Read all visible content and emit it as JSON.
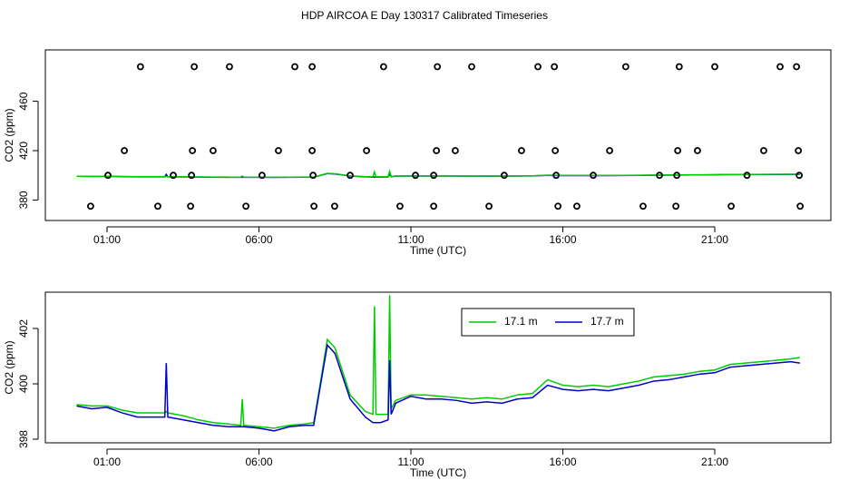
{
  "chart_data": [
    {
      "type": "line",
      "title": "HDP AIRCOA E  Day 130317  Calibrated Timeseries",
      "x_label": "Time (UTC)",
      "y_label": "CO2 (ppm)",
      "xlim": [
        -1.03,
        24.82
      ],
      "xticks": [
        {
          "value": 1,
          "label": "01:00"
        },
        {
          "value": 6,
          "label": "06:00"
        },
        {
          "value": 11,
          "label": "11:00"
        },
        {
          "value": 16,
          "label": "16:00"
        },
        {
          "value": 21,
          "label": "21:00"
        }
      ],
      "ylim": [
        363.4,
        501.6
      ],
      "yticks": [
        380,
        420,
        460
      ],
      "series": [
        {
          "color": "#0000cc",
          "x": [
            0,
            0.5,
            1,
            1.5,
            2,
            2.5,
            2.9,
            2.95,
            3,
            3.5,
            4,
            4.5,
            5,
            5.4,
            5.45,
            5.5,
            6,
            6.5,
            7,
            7.5,
            7.8,
            8,
            8.25,
            8.5,
            9,
            9.5,
            9.75,
            9.8,
            9.85,
            10,
            10.25,
            10.3,
            10.35,
            10.5,
            11,
            11.5,
            12,
            12.5,
            13,
            13.5,
            14,
            14.5,
            15,
            15.5,
            16,
            16.5,
            17,
            17.5,
            18,
            18.5,
            19,
            19.5,
            20,
            20.5,
            21,
            21.5,
            22,
            22.5,
            23,
            23.5,
            23.8
          ],
          "values": [
            399.2,
            399.1,
            399.15,
            398.95,
            398.8,
            398.8,
            398.8,
            400.75,
            398.8,
            398.7,
            398.6,
            398.5,
            398.45,
            398.45,
            398.45,
            398.45,
            398.4,
            398.3,
            398.45,
            398.5,
            398.5,
            399.8,
            401.4,
            401.1,
            399.45,
            398.8,
            398.6,
            398.6,
            398.6,
            398.6,
            398.7,
            400.85,
            398.9,
            399.3,
            399.55,
            399.45,
            399.45,
            399.4,
            399.3,
            399.35,
            399.3,
            399.45,
            399.5,
            399.95,
            399.8,
            399.75,
            399.8,
            399.75,
            399.85,
            399.95,
            400.1,
            400.15,
            400.25,
            400.35,
            400.4,
            400.6,
            400.65,
            400.7,
            400.75,
            400.8,
            400.75
          ]
        },
        {
          "color": "#00cc00",
          "x": [
            0,
            0.5,
            1,
            1.5,
            2,
            2.5,
            2.9,
            2.95,
            3,
            3.5,
            4,
            4.5,
            5,
            5.4,
            5.45,
            5.5,
            6,
            6.5,
            7,
            7.5,
            7.8,
            8,
            8.25,
            8.5,
            9,
            9.5,
            9.75,
            9.8,
            9.85,
            10,
            10.25,
            10.3,
            10.35,
            10.5,
            11,
            11.5,
            12,
            12.5,
            13,
            13.5,
            14,
            14.5,
            15,
            15.5,
            16,
            16.5,
            17,
            17.5,
            18,
            18.5,
            19,
            19.5,
            20,
            20.5,
            21,
            21.5,
            22,
            22.5,
            23,
            23.5,
            23.8
          ],
          "values": [
            399.25,
            399.2,
            399.2,
            399.05,
            398.95,
            398.95,
            398.95,
            399.0,
            398.95,
            398.85,
            398.7,
            398.6,
            398.55,
            398.5,
            399.45,
            398.5,
            398.45,
            398.4,
            398.5,
            398.55,
            398.6,
            399.9,
            401.6,
            401.3,
            399.6,
            399.0,
            398.9,
            402.8,
            398.9,
            398.9,
            398.9,
            403.2,
            399.1,
            399.4,
            399.6,
            399.6,
            399.55,
            399.5,
            399.45,
            399.5,
            399.45,
            399.6,
            399.65,
            400.15,
            399.95,
            399.9,
            399.95,
            399.9,
            400.0,
            400.1,
            400.25,
            400.3,
            400.35,
            400.45,
            400.5,
            400.7,
            400.75,
            400.8,
            400.85,
            400.9,
            400.95
          ]
        },
        {
          "color": "#000000",
          "marker": "circle",
          "x": [
            2.1,
            3.87,
            5.03,
            7.18,
            7.75,
            10.1,
            11.87,
            13.0,
            15.18,
            15.72,
            18.07,
            19.83,
            21.0,
            23.15,
            23.69,
            1.57,
            3.81,
            4.49,
            6.64,
            7.75,
            9.54,
            11.84,
            12.46,
            14.64,
            15.75,
            17.54,
            19.78,
            20.43,
            22.61,
            23.75,
            1.03,
            3.18,
            3.78,
            6.1,
            7.78,
            9.0,
            11.15,
            11.75,
            14.07,
            15.78,
            17.0,
            19.18,
            19.75,
            22.06,
            23.78,
            0.46,
            2.67,
            3.75,
            5.57,
            7.81,
            8.49,
            10.64,
            11.75,
            13.57,
            15.84,
            16.46,
            18.64,
            19.72,
            21.54,
            23.81
          ],
          "values": [
            488,
            488,
            488,
            488,
            488,
            488,
            488,
            488,
            488,
            488,
            488,
            488,
            488,
            488,
            488,
            420,
            420,
            420,
            420,
            420,
            420,
            420,
            420,
            420,
            420,
            420,
            420,
            420,
            420,
            420,
            400,
            400,
            400,
            400,
            400,
            400,
            400,
            400,
            400,
            400,
            400,
            400,
            400,
            400,
            400,
            375,
            375,
            375,
            375,
            375,
            375,
            375,
            375,
            375,
            375,
            375,
            375,
            375,
            375,
            375
          ]
        }
      ]
    },
    {
      "type": "line",
      "x_label": "Time (UTC)",
      "y_label": "CO2 (ppm)",
      "legend": "top",
      "xlim": [
        -1.03,
        24.82
      ],
      "xticks": [
        {
          "value": 1,
          "label": "01:00"
        },
        {
          "value": 6,
          "label": "06:00"
        },
        {
          "value": 11,
          "label": "11:00"
        },
        {
          "value": 16,
          "label": "16:00"
        },
        {
          "value": 21,
          "label": "21:00"
        }
      ],
      "ylim": [
        397.87,
        403.31
      ],
      "yticks": [
        398,
        400,
        402
      ],
      "series": [
        {
          "name": "17.1 m",
          "color": "#00cc00",
          "x": [
            0,
            0.5,
            1,
            1.5,
            2,
            2.5,
            2.9,
            2.95,
            3,
            3.5,
            4,
            4.5,
            5,
            5.4,
            5.45,
            5.5,
            6,
            6.5,
            7,
            7.5,
            7.8,
            8,
            8.25,
            8.5,
            9,
            9.5,
            9.75,
            9.8,
            9.85,
            10,
            10.25,
            10.3,
            10.35,
            10.5,
            11,
            11.5,
            12,
            12.5,
            13,
            13.5,
            14,
            14.5,
            15,
            15.5,
            16,
            16.5,
            17,
            17.5,
            18,
            18.5,
            19,
            19.5,
            20,
            20.5,
            21,
            21.5,
            22,
            22.5,
            23,
            23.5,
            23.8
          ],
          "values": [
            399.25,
            399.2,
            399.2,
            399.05,
            398.95,
            398.95,
            398.95,
            399.0,
            398.95,
            398.85,
            398.7,
            398.6,
            398.55,
            398.5,
            399.45,
            398.5,
            398.45,
            398.4,
            398.5,
            398.55,
            398.6,
            399.9,
            401.6,
            401.3,
            399.6,
            399.0,
            398.9,
            402.8,
            398.9,
            398.9,
            398.9,
            403.2,
            399.1,
            399.4,
            399.6,
            399.6,
            399.55,
            399.5,
            399.45,
            399.5,
            399.45,
            399.6,
            399.65,
            400.15,
            399.95,
            399.9,
            399.95,
            399.9,
            400.0,
            400.1,
            400.25,
            400.3,
            400.35,
            400.45,
            400.5,
            400.7,
            400.75,
            400.8,
            400.85,
            400.9,
            400.95
          ]
        },
        {
          "name": "17.7 m",
          "color": "#0000cc",
          "x": [
            0,
            0.5,
            1,
            1.5,
            2,
            2.5,
            2.9,
            2.95,
            3,
            3.5,
            4,
            4.5,
            5,
            5.4,
            5.45,
            5.5,
            6,
            6.5,
            7,
            7.5,
            7.8,
            8,
            8.25,
            8.5,
            9,
            9.5,
            9.75,
            9.8,
            9.85,
            10,
            10.25,
            10.3,
            10.35,
            10.5,
            11,
            11.5,
            12,
            12.5,
            13,
            13.5,
            14,
            14.5,
            15,
            15.5,
            16,
            16.5,
            17,
            17.5,
            18,
            18.5,
            19,
            19.5,
            20,
            20.5,
            21,
            21.5,
            22,
            22.5,
            23,
            23.5,
            23.8
          ],
          "values": [
            399.2,
            399.1,
            399.15,
            398.95,
            398.8,
            398.8,
            398.8,
            400.75,
            398.8,
            398.7,
            398.6,
            398.5,
            398.45,
            398.45,
            398.45,
            398.45,
            398.4,
            398.3,
            398.45,
            398.5,
            398.5,
            399.8,
            401.4,
            401.1,
            399.45,
            398.8,
            398.6,
            398.6,
            398.6,
            398.6,
            398.7,
            400.85,
            398.9,
            399.3,
            399.55,
            399.45,
            399.45,
            399.4,
            399.3,
            399.35,
            399.3,
            399.45,
            399.5,
            399.95,
            399.8,
            399.75,
            399.8,
            399.75,
            399.85,
            399.95,
            400.1,
            400.15,
            400.25,
            400.35,
            400.4,
            400.6,
            400.65,
            400.7,
            400.75,
            400.8,
            400.75
          ]
        }
      ]
    }
  ]
}
